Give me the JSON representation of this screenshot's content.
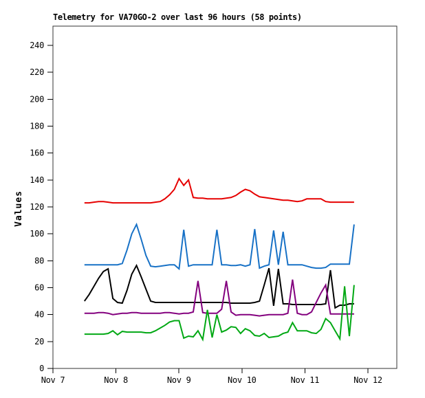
{
  "chart_data": {
    "type": "line",
    "title": "Telemetry for VA70GO-2 over last 96 hours (58 points)",
    "ylabel": "Values",
    "point_count": 58,
    "grid": false,
    "legend": "none",
    "ylim": [
      0,
      254
    ],
    "xlim_days": [
      7,
      12.46
    ],
    "x_start_day": 7.5,
    "x_step_day": 0.07509,
    "x_axis": {
      "month": "Nov",
      "start_day": 7,
      "tick_labels": [
        "Nov 7",
        "Nov 8",
        "Nov 9",
        "Nov 10",
        "Nov 11",
        "Nov 12"
      ]
    },
    "y_axis": {
      "label": "Values",
      "ticks": [
        0,
        20,
        40,
        60,
        80,
        100,
        120,
        140,
        160,
        180,
        200,
        220,
        240
      ]
    },
    "series": [
      {
        "name": "series-red",
        "color": "#e60000",
        "values": [
          123,
          123,
          123.5,
          124,
          124,
          123.5,
          123,
          123,
          123,
          123,
          123,
          123,
          123,
          123,
          123,
          123.5,
          124,
          126,
          129,
          133,
          141,
          136,
          140,
          127,
          126.5,
          126.5,
          126,
          126,
          126,
          126,
          126.5,
          127,
          128.5,
          131,
          133,
          132,
          129.5,
          127.5,
          127,
          126.5,
          126,
          125.5,
          125,
          125,
          124.5,
          124,
          124.5,
          126,
          126,
          126,
          126,
          124,
          123.5,
          123.5,
          123.5,
          123.5,
          123.5,
          123.5
        ]
      },
      {
        "name": "series-blue",
        "color": "#1771c6",
        "values": [
          77,
          77,
          77,
          77,
          77,
          77,
          77,
          77,
          78,
          88,
          100,
          107,
          96,
          84,
          76,
          75.5,
          76,
          76.5,
          77,
          77,
          74,
          103,
          76,
          77,
          77,
          77,
          77,
          77,
          103,
          77,
          77,
          76.5,
          76.5,
          77,
          76,
          77,
          103.5,
          74.5,
          76,
          77,
          102.5,
          77,
          101.5,
          77,
          77,
          77,
          77,
          76,
          75,
          74.5,
          74.5,
          75,
          77.5,
          77.5,
          77.5,
          77.5,
          77.5,
          107
        ]
      },
      {
        "name": "series-black",
        "color": "#000000",
        "values": [
          50,
          55,
          61,
          67,
          72,
          74,
          52,
          49,
          48.5,
          58,
          70,
          76.5,
          68,
          59,
          50,
          49,
          49,
          49,
          49,
          49,
          49,
          49,
          49,
          49,
          49,
          49,
          49,
          49,
          49,
          49,
          49,
          48.5,
          48.5,
          48.5,
          48.5,
          48.5,
          49,
          50,
          62,
          74.5,
          46.5,
          74,
          48,
          48,
          47.5,
          47.5,
          47.5,
          47.5,
          47.5,
          47.5,
          47.5,
          48,
          73,
          45,
          47,
          47,
          48,
          48
        ]
      },
      {
        "name": "series-purple",
        "color": "#83007e",
        "values": [
          41,
          41,
          41,
          41.5,
          41.5,
          41,
          40,
          40.5,
          41,
          41,
          41.5,
          41.5,
          41,
          41,
          41,
          41,
          41,
          41.5,
          41.5,
          41,
          40.5,
          41,
          41,
          42,
          65,
          41.5,
          41,
          41,
          41,
          44,
          65,
          42,
          39.5,
          40,
          40,
          40,
          39.5,
          39,
          39.5,
          40,
          40,
          40,
          40,
          41,
          66,
          41,
          40,
          40,
          42,
          49,
          56,
          62,
          40.5,
          40.5,
          40.5,
          40.5,
          40.5,
          40.5
        ]
      },
      {
        "name": "series-green",
        "color": "#00a813",
        "values": [
          25.5,
          25.5,
          25.5,
          25.5,
          25.5,
          26,
          28,
          25,
          27.5,
          27,
          27,
          27,
          27,
          26.5,
          26.5,
          28,
          30,
          32,
          34.5,
          35.5,
          35.5,
          22.5,
          24,
          23.5,
          28,
          21.5,
          43.5,
          23,
          40,
          27,
          28.5,
          31,
          30.5,
          26,
          29.5,
          28,
          24.5,
          24,
          26,
          23,
          23.5,
          24,
          26,
          27,
          34,
          28,
          28,
          28,
          26.5,
          26,
          29,
          37,
          34,
          28,
          22,
          61,
          24,
          62
        ]
      }
    ]
  }
}
